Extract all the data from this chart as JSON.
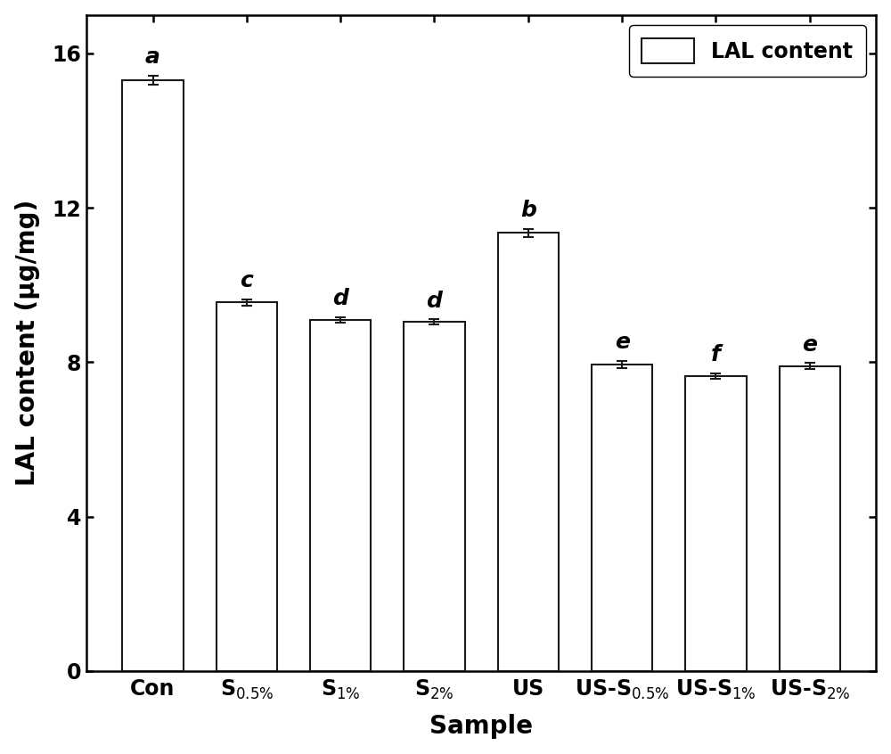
{
  "values": [
    15.3,
    9.55,
    9.1,
    9.05,
    11.35,
    7.95,
    7.65,
    7.9
  ],
  "errors": [
    0.12,
    0.08,
    0.07,
    0.06,
    0.1,
    0.09,
    0.07,
    0.08
  ],
  "letters": [
    "a",
    "c",
    "d",
    "d",
    "b",
    "e",
    "f",
    "e"
  ],
  "bar_color": "#ffffff",
  "bar_edgecolor": "#1a1a1a",
  "ylabel": "LAL content (μg/mg)",
  "xlabel": "Sample",
  "ylim": [
    0,
    17
  ],
  "yticks": [
    0,
    4,
    8,
    12,
    16
  ],
  "legend_label": "LAL content",
  "bar_width": 0.65,
  "linewidth": 1.5,
  "label_fontsize": 20,
  "tick_fontsize": 17,
  "letter_fontsize": 18,
  "legend_fontsize": 17
}
